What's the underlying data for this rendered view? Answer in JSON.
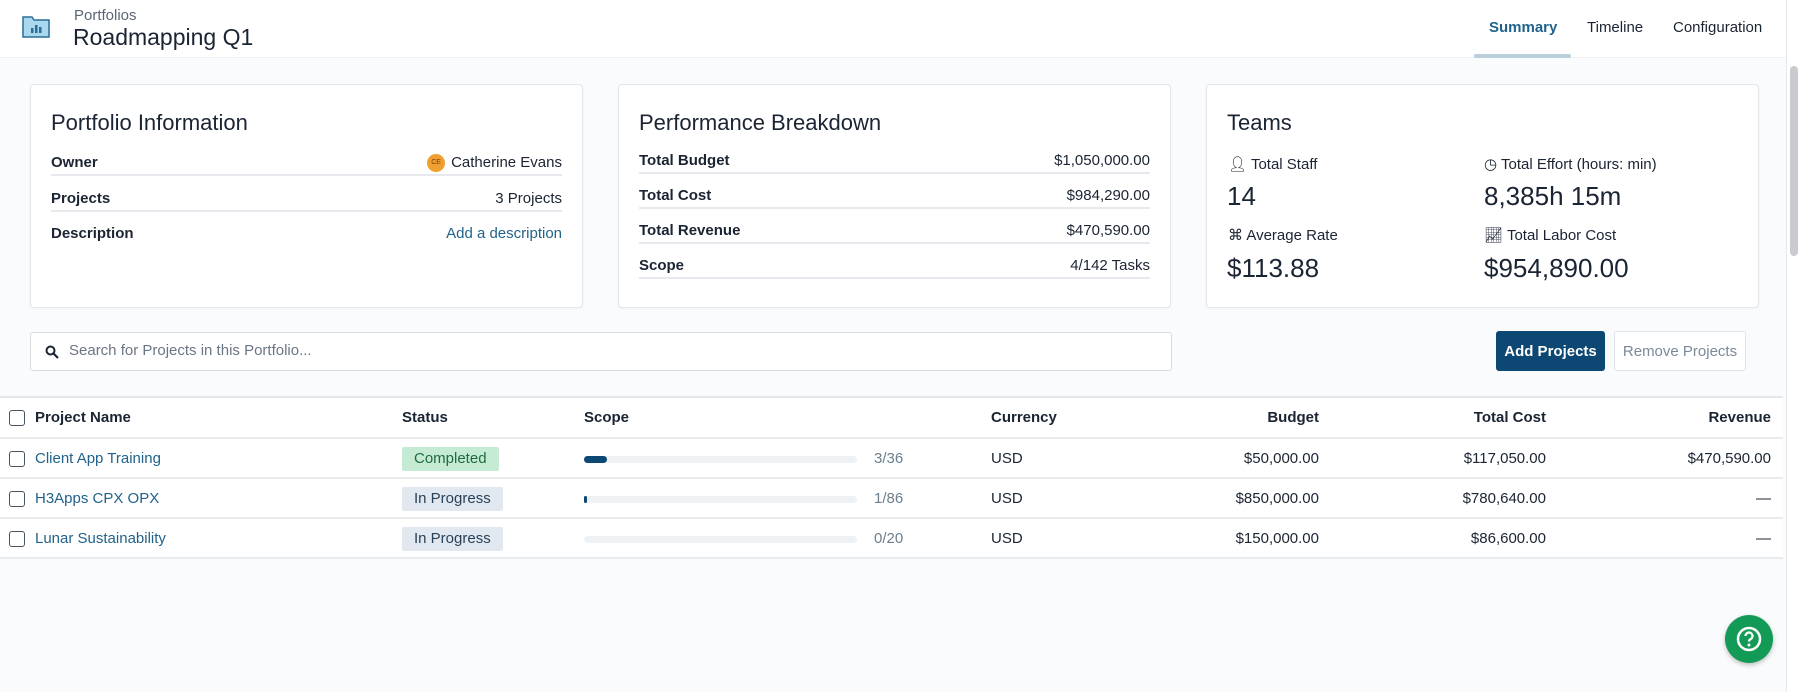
{
  "header": {
    "breadcrumb": "Portfolios",
    "title": "Roadmapping Q1",
    "tabs": [
      {
        "label": "Summary",
        "active": true
      },
      {
        "label": "Timeline"
      },
      {
        "label": "Configuration"
      }
    ]
  },
  "portfolio_info": {
    "title": "Portfolio Information",
    "owner_label": "Owner",
    "owner_initials": "CE",
    "owner_name": "Catherine Evans",
    "projects_label": "Projects",
    "projects_value": "3 Projects",
    "description_label": "Description",
    "description_link": "Add a description"
  },
  "performance": {
    "title": "Performance Breakdown",
    "rows": [
      {
        "label": "Total Budget",
        "value": "$1,050,000.00"
      },
      {
        "label": "Total Cost",
        "value": "$984,290.00"
      },
      {
        "label": "Total Revenue",
        "value": "$470,590.00"
      },
      {
        "label": "Scope",
        "value": "4/142 Tasks"
      }
    ]
  },
  "teams": {
    "title": "Teams",
    "total_staff_label": "Total Staff",
    "total_staff": "14",
    "effort_label": "Total Effort (hours: min)",
    "effort": "8,385h 15m",
    "rate_label": "Average Rate",
    "rate": "$113.88",
    "labor_label": "Total Labor Cost",
    "labor": "$954,890.00"
  },
  "search": {
    "placeholder": "Search for Projects in this Portfolio...",
    "value": ""
  },
  "actions": {
    "add": "Add Projects",
    "remove": "Remove Projects"
  },
  "table": {
    "headers": {
      "name": "Project Name",
      "status": "Status",
      "scope": "Scope",
      "currency": "Currency",
      "budget": "Budget",
      "cost": "Total Cost",
      "revenue": "Revenue"
    },
    "rows": [
      {
        "name": "Client App Training",
        "status": "Completed",
        "scope": "3/36",
        "scope_fraction": 0.083,
        "currency": "USD",
        "budget": "$50,000.00",
        "cost": "$117,050.00",
        "revenue": "$470,590.00"
      },
      {
        "name": "H3Apps CPX OPX",
        "status": "In Progress",
        "scope": "1/86",
        "scope_fraction": 0.012,
        "currency": "USD",
        "budget": "$850,000.00",
        "cost": "$780,640.00",
        "revenue": "—"
      },
      {
        "name": "Lunar Sustainability",
        "status": "In Progress",
        "scope": "0/20",
        "scope_fraction": 0,
        "currency": "USD",
        "budget": "$150,000.00",
        "cost": "$86,600.00",
        "revenue": "—"
      }
    ]
  },
  "colors": {
    "accent": "#0d4774",
    "link": "#21638a",
    "completed_bg": "#c6ebd5",
    "in_progress_bg": "#e1e8ef",
    "help": "#139a56",
    "avatar": "#f0a030"
  }
}
